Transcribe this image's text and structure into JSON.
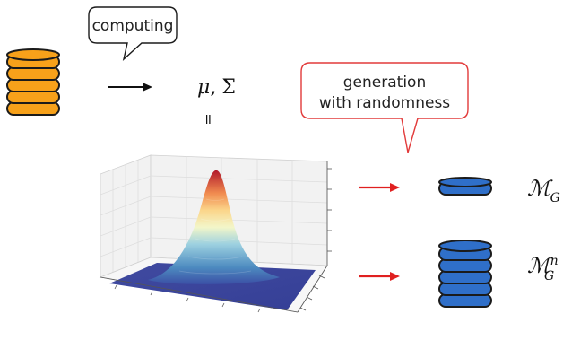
{
  "callouts": {
    "computing": "computing",
    "generation_line1": "generation",
    "generation_line2": "with randomness"
  },
  "stats": {
    "mu": "μ",
    "comma": ",",
    "sigma": "Σ",
    "equals": "="
  },
  "outputs": {
    "single": {
      "base": "ℳ",
      "sub": "G"
    },
    "multi": {
      "base": "ℳ",
      "sub": "G",
      "sup": "n"
    }
  },
  "colors": {
    "database_orange": "#f7a11a",
    "database_blue": "#2f6fc9",
    "callout_red": "#e23a3a",
    "arrow_red": "#e02020",
    "arrow_black": "#111111"
  },
  "icons": [
    "database-stack-icon",
    "arrow-right-icon"
  ]
}
